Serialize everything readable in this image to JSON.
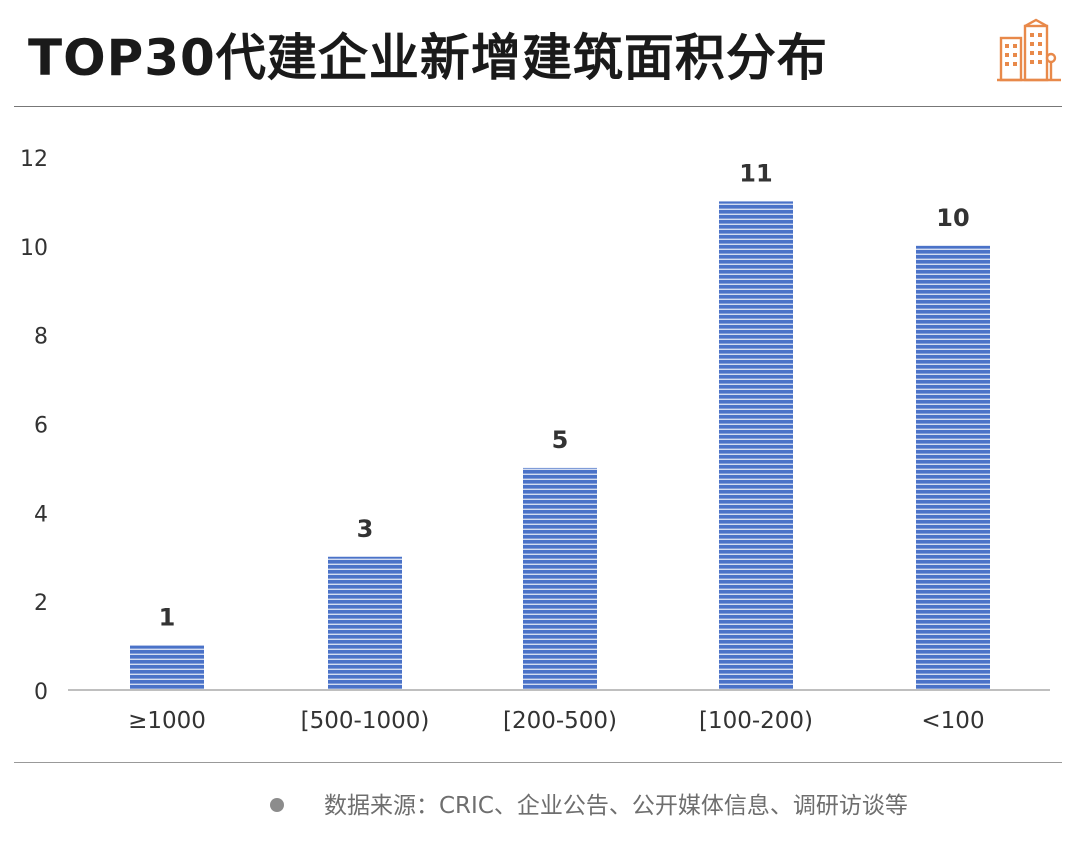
{
  "header": {
    "title": "TOP30代建企业新增建筑面积分布",
    "logo_icon": "city-buildings-icon"
  },
  "footer": {
    "bullet_icon": "bullet-dot-icon",
    "source": "数据来源：CRIC、企业公告、公开媒体信息、调研访谈等"
  },
  "colors": {
    "bar": "#4a72c8",
    "bar_stripe": "#ffffff",
    "axis": "#bfbfbf",
    "logo": "#e8894a"
  },
  "chart_data": {
    "type": "bar",
    "categories": [
      "≥1000",
      "[500-1000)",
      "[200-500)",
      "[100-200)",
      "<100"
    ],
    "values": [
      1,
      3,
      5,
      11,
      10
    ],
    "data_labels": [
      "1",
      "3",
      "5",
      "11",
      "10"
    ],
    "yticks": [
      0,
      2,
      4,
      6,
      8,
      10,
      12
    ],
    "ylim": [
      0,
      12
    ],
    "grid": false,
    "legend": false
  }
}
